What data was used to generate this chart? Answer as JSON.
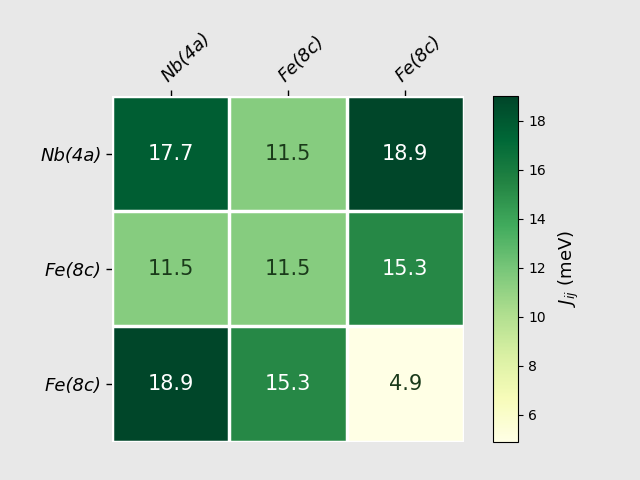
{
  "matrix": [
    [
      17.7,
      11.5,
      18.9
    ],
    [
      11.5,
      11.5,
      15.3
    ],
    [
      18.9,
      15.3,
      4.9
    ]
  ],
  "row_labels": [
    "Nb(4a)",
    "Fe(8c)",
    "Fe(8c)"
  ],
  "col_labels": [
    "Nb(4a)",
    "Fe(8c)",
    "Fe(8c)"
  ],
  "colorbar_label": "$J_{ij}$ (meV)",
  "vmin": 4.9,
  "vmax": 19.0,
  "colormap": "YlGn",
  "text_color_threshold": 13.5,
  "cell_fontsize": 15,
  "label_fontsize": 13,
  "colorbar_fontsize": 13,
  "background_color": "#e8e8e8"
}
